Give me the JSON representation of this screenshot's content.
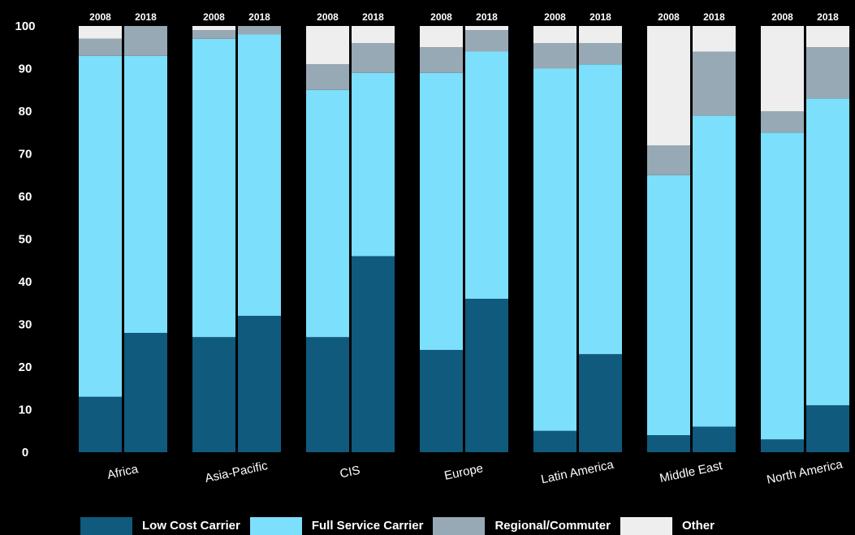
{
  "chart_data": {
    "type": "bar",
    "stacked": true,
    "title": "",
    "xlabel": "",
    "ylabel": "",
    "ylim": [
      0,
      100
    ],
    "yticks": [
      0,
      10,
      20,
      30,
      40,
      50,
      60,
      70,
      80,
      90,
      100
    ],
    "grid": false,
    "legend_position": "bottom",
    "background_color": "#000000",
    "regions": [
      "Africa",
      "Asia-Pacific",
      "CIS",
      "Europe",
      "Latin America",
      "Middle East",
      "North America"
    ],
    "years": [
      "2008",
      "2018"
    ],
    "series": [
      {
        "name": "Low Cost Carrier",
        "color": "#0f5a7d",
        "values": [
          [
            13,
            28
          ],
          [
            27,
            32
          ],
          [
            27,
            46
          ],
          [
            24,
            36
          ],
          [
            5,
            23
          ],
          [
            4,
            6
          ],
          [
            3,
            11
          ]
        ]
      },
      {
        "name": "Full Service Carrier",
        "color": "#7cdffb",
        "values": [
          [
            80,
            65
          ],
          [
            70,
            66
          ],
          [
            58,
            43
          ],
          [
            65,
            58
          ],
          [
            85,
            68
          ],
          [
            61,
            73
          ],
          [
            72,
            72
          ]
        ]
      },
      {
        "name": "Regional/Commuter",
        "color": "#97a9b4",
        "values": [
          [
            4,
            7
          ],
          [
            2,
            2
          ],
          [
            6,
            7
          ],
          [
            6,
            5
          ],
          [
            6,
            5
          ],
          [
            7,
            15
          ],
          [
            5,
            12
          ]
        ]
      },
      {
        "name": "Other",
        "color": "#eeeeee",
        "values": [
          [
            3,
            0
          ],
          [
            1,
            0
          ],
          [
            9,
            4
          ],
          [
            5,
            1
          ],
          [
            4,
            4
          ],
          [
            28,
            6
          ],
          [
            20,
            5
          ]
        ]
      }
    ]
  }
}
